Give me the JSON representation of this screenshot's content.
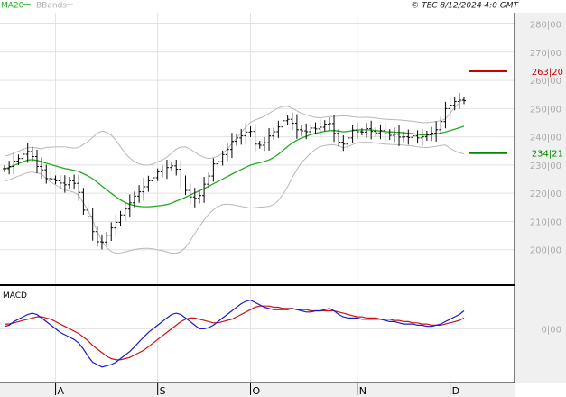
{
  "legend": {
    "ma_label": "MA20",
    "bb_label": "BBands"
  },
  "copyright": "© TEC 8/12/2024 4:0 GMT",
  "macd_label": "MACD",
  "colors": {
    "background": "#ffffff",
    "grid": "#e2e2e2",
    "axis_panel": "#f0f0f0",
    "price_bars": "#000000",
    "ma20": "#22aa22",
    "bbands": "#b8b8b8",
    "resistance": "#cc0000",
    "support": "#008800",
    "macd_line": "#1a1acc",
    "signal_line": "#cc1111"
  },
  "chart_data": {
    "type": "ohlc",
    "price_ticks": [
      200,
      210,
      220,
      230,
      240,
      250,
      260,
      270,
      280
    ],
    "price_tick_labels": [
      "200|00",
      "210|00",
      "220|00",
      "230|00",
      "240|00",
      "250|00",
      "260|00",
      "270|00",
      "280|00"
    ],
    "ylim": [
      190,
      284
    ],
    "resistance": {
      "value": 263.2,
      "label": "263|20"
    },
    "support": {
      "value": 234.21,
      "label": "234|21"
    },
    "x_month_labels": [
      {
        "index": 11,
        "label": "A"
      },
      {
        "index": 33,
        "label": "S"
      },
      {
        "index": 53,
        "label": "O"
      },
      {
        "index": 76,
        "label": "N"
      },
      {
        "index": 96,
        "label": "D"
      }
    ],
    "n_bars": 100,
    "close": [
      228.7,
      229.5,
      231.4,
      232.3,
      233.8,
      234.8,
      233.0,
      229.5,
      228.3,
      225.2,
      225.1,
      224.4,
      223.6,
      223.0,
      224.4,
      223.5,
      220.3,
      214.0,
      211.7,
      206.4,
      202.8,
      202.7,
      205.1,
      207.7,
      209.7,
      212.3,
      214.4,
      216.6,
      219.0,
      220.5,
      222.3,
      224.4,
      225.5,
      227.6,
      227.9,
      229.1,
      229.7,
      228.5,
      224.7,
      221.0,
      218.7,
      218.2,
      219.2,
      223.2,
      226.1,
      230.4,
      231.2,
      233.7,
      235.5,
      238.4,
      239.6,
      240.4,
      241.7,
      241.9,
      237.4,
      237.0,
      237.9,
      240.3,
      241.8,
      243.5,
      245.7,
      246.2,
      244.8,
      242.5,
      242.1,
      241.8,
      243.1,
      242.8,
      243.4,
      244.5,
      244.7,
      241.2,
      238.1,
      237.4,
      239.6,
      242.4,
      241.8,
      241.7,
      242.9,
      241.9,
      241.4,
      242.2,
      241.1,
      240.5,
      240.9,
      239.9,
      240.0,
      239.8,
      240.3,
      239.6,
      240.0,
      240.7,
      241.3,
      242.5,
      245.4,
      250.0,
      251.2,
      252.5,
      253.0,
      252.8
    ],
    "macd": {
      "zero_label": "0|00",
      "macd_line": [
        0.2,
        0.3,
        0.6,
        0.8,
        1.0,
        1.2,
        1.3,
        1.2,
        0.9,
        0.6,
        0.3,
        0.0,
        -0.3,
        -0.5,
        -0.7,
        -0.9,
        -1.2,
        -1.7,
        -2.3,
        -2.8,
        -3.0,
        -3.2,
        -3.1,
        -3.0,
        -2.8,
        -2.5,
        -2.2,
        -1.9,
        -1.5,
        -1.1,
        -0.7,
        -0.3,
        0.0,
        0.3,
        0.6,
        0.9,
        1.2,
        1.3,
        1.2,
        0.9,
        0.6,
        0.3,
        0.0,
        0.0,
        0.1,
        0.3,
        0.6,
        0.9,
        1.2,
        1.5,
        1.8,
        2.1,
        2.3,
        2.4,
        2.2,
        2.0,
        1.8,
        1.7,
        1.6,
        1.6,
        1.6,
        1.6,
        1.7,
        1.6,
        1.5,
        1.4,
        1.4,
        1.5,
        1.5,
        1.6,
        1.7,
        1.5,
        1.2,
        1.0,
        0.9,
        0.9,
        0.9,
        0.8,
        0.8,
        0.8,
        0.8,
        0.8,
        0.7,
        0.6,
        0.6,
        0.5,
        0.4,
        0.4,
        0.4,
        0.3,
        0.3,
        0.2,
        0.2,
        0.3,
        0.4,
        0.6,
        0.8,
        1.0,
        1.2,
        1.5
      ],
      "signal_line": [
        0.4,
        0.4,
        0.5,
        0.6,
        0.7,
        0.8,
        0.9,
        1.0,
        1.0,
        0.9,
        0.8,
        0.6,
        0.4,
        0.2,
        0.0,
        -0.2,
        -0.4,
        -0.7,
        -1.0,
        -1.4,
        -1.7,
        -2.0,
        -2.3,
        -2.5,
        -2.6,
        -2.6,
        -2.5,
        -2.4,
        -2.2,
        -2.0,
        -1.8,
        -1.5,
        -1.2,
        -0.9,
        -0.6,
        -0.3,
        0.0,
        0.3,
        0.6,
        0.8,
        0.9,
        0.9,
        0.8,
        0.7,
        0.6,
        0.5,
        0.5,
        0.6,
        0.7,
        0.8,
        1.0,
        1.2,
        1.4,
        1.6,
        1.8,
        1.9,
        1.9,
        1.9,
        1.8,
        1.8,
        1.7,
        1.7,
        1.7,
        1.6,
        1.6,
        1.6,
        1.5,
        1.5,
        1.5,
        1.5,
        1.5,
        1.5,
        1.4,
        1.3,
        1.2,
        1.1,
        1.0,
        1.0,
        0.9,
        0.9,
        0.9,
        0.8,
        0.8,
        0.8,
        0.7,
        0.7,
        0.6,
        0.6,
        0.5,
        0.5,
        0.4,
        0.4,
        0.3,
        0.3,
        0.3,
        0.4,
        0.5,
        0.6,
        0.7,
        0.9
      ],
      "ylim": [
        -4.5,
        3.5
      ]
    }
  }
}
